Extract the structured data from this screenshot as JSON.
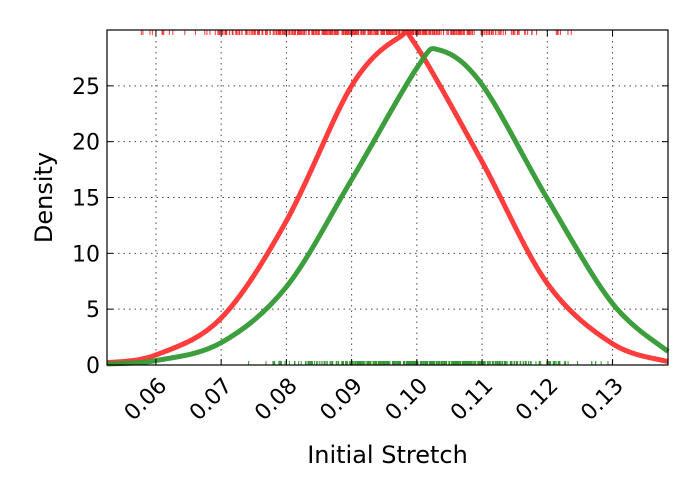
{
  "chart_data": {
    "type": "line",
    "title": "",
    "xlabel": "Initial Stretch",
    "ylabel": "Density",
    "xlim": [
      0.0525,
      0.1385
    ],
    "ylim": [
      0,
      30
    ],
    "grid": true,
    "x_ticks": [
      0.06,
      0.07,
      0.08,
      0.09,
      0.1,
      0.11,
      0.12,
      0.13
    ],
    "x_tick_labels": [
      "0.06",
      "0.07",
      "0.08",
      "0.09",
      "0.10",
      "0.11",
      "0.12",
      "0.13"
    ],
    "y_ticks": [
      0,
      5,
      10,
      15,
      20,
      25
    ],
    "y_tick_labels": [
      "0",
      "5",
      "10",
      "15",
      "20",
      "25"
    ],
    "series": [
      {
        "color": "#ff3333",
        "peak_x": 0.0972,
        "peak_density": 29.3,
        "points": [
          [
            0.0525,
            0.2
          ],
          [
            0.06,
            0.9
          ],
          [
            0.07,
            4.2
          ],
          [
            0.08,
            12.9
          ],
          [
            0.09,
            25.0
          ],
          [
            0.0972,
            29.3
          ],
          [
            0.1,
            28.5
          ],
          [
            0.11,
            18.2
          ],
          [
            0.12,
            7.3
          ],
          [
            0.13,
            1.9
          ],
          [
            0.1385,
            0.3
          ]
        ],
        "rug_position": "top",
        "rug_range": [
          0.0525,
          0.1305
        ]
      },
      {
        "color": "#339933",
        "peak_x": 0.1035,
        "peak_density": 28.2,
        "points": [
          [
            0.0525,
            0.1
          ],
          [
            0.06,
            0.4
          ],
          [
            0.07,
            2.0
          ],
          [
            0.08,
            7.0
          ],
          [
            0.09,
            16.6
          ],
          [
            0.1,
            26.6
          ],
          [
            0.1035,
            28.2
          ],
          [
            0.11,
            25.1
          ],
          [
            0.12,
            14.9
          ],
          [
            0.13,
            5.5
          ],
          [
            0.1385,
            1.2
          ]
        ],
        "rug_position": "bottom",
        "rug_range": [
          0.0675,
          0.1345
        ]
      }
    ]
  }
}
